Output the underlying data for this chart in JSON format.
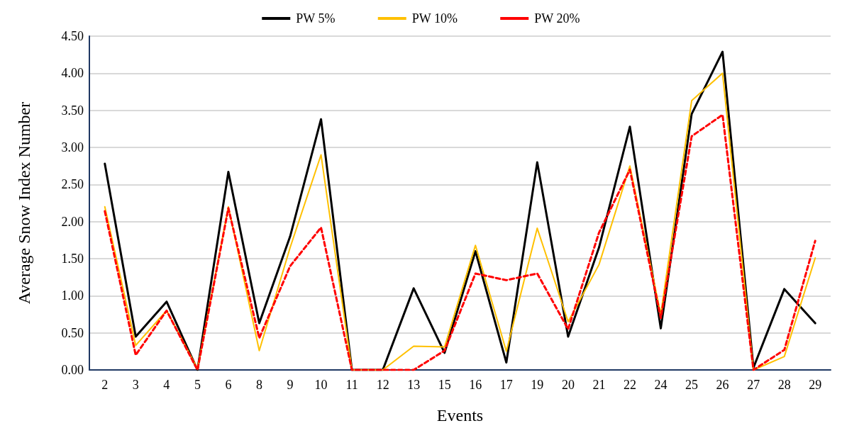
{
  "chart_data": {
    "type": "line",
    "xlabel": "Events",
    "ylabel": "Average Snow Index Number",
    "categories": [
      "2",
      "3",
      "4",
      "5",
      "6",
      "8",
      "9",
      "10",
      "11",
      "12",
      "13",
      "15",
      "16",
      "17",
      "19",
      "20",
      "21",
      "22",
      "24",
      "25",
      "26",
      "27",
      "28",
      "29"
    ],
    "series": [
      {
        "name": "PW 5%",
        "color": "#000000",
        "line_style": "solid",
        "values": [
          2.78,
          0.45,
          0.92,
          0,
          2.67,
          0.63,
          1.8,
          3.38,
          0,
          0,
          1.1,
          0.23,
          1.6,
          0.1,
          2.8,
          0.45,
          1.65,
          3.28,
          0.56,
          3.45,
          4.29,
          0.03,
          1.09,
          0.63
        ]
      },
      {
        "name": "PW 10%",
        "color": "#ffc000",
        "line_style": "solid",
        "values": [
          2.2,
          0.33,
          0.8,
          0.02,
          2.2,
          0.26,
          1.65,
          2.9,
          0,
          0,
          0.32,
          0.31,
          1.68,
          0.25,
          1.91,
          0.65,
          1.42,
          2.75,
          0.75,
          3.63,
          4.0,
          0,
          0.18,
          1.51
        ]
      },
      {
        "name": "PW 20%",
        "color": "#ff0000",
        "line_style": "dashed",
        "values": [
          2.14,
          0.2,
          0.8,
          0,
          2.18,
          0.43,
          1.4,
          1.92,
          0,
          0,
          0,
          0.26,
          1.3,
          1.21,
          1.3,
          0.55,
          1.85,
          2.7,
          0.7,
          3.15,
          3.44,
          0,
          0.27,
          1.74
        ]
      }
    ],
    "ylim": [
      0,
      4.5
    ],
    "yticks": [
      {
        "value": 0,
        "label": "0.00"
      },
      {
        "value": 0.5,
        "label": "0.50"
      },
      {
        "value": 1,
        "label": "1.00"
      },
      {
        "value": 1.5,
        "label": "1.50"
      },
      {
        "value": 2,
        "label": "2.00"
      },
      {
        "value": 2.5,
        "label": "2.50"
      },
      {
        "value": 3,
        "label": "3.00"
      },
      {
        "value": 3.5,
        "label": "3.50"
      },
      {
        "value": 4,
        "label": "4.00"
      },
      {
        "value": 4.5,
        "label": "4.50"
      }
    ],
    "grid": "y",
    "legend": "top",
    "marker": "none"
  }
}
